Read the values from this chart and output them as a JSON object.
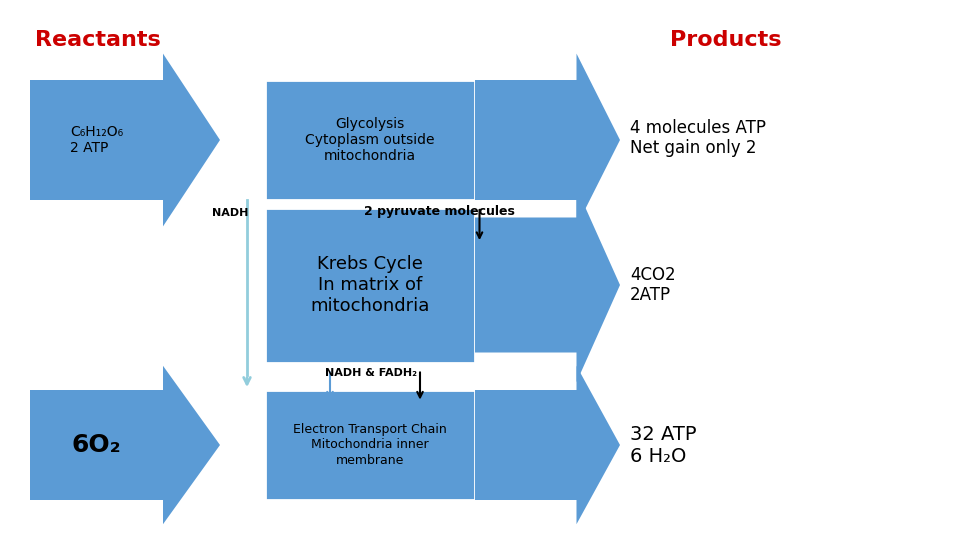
{
  "bg_color": "#ffffff",
  "arrow_color": "#5B9BD5",
  "box_color": "#5B9BD5",
  "text_color_red": "#CC0000",
  "reactants_label": "Reactants",
  "products_label": "Products",
  "product1_text": "4 molecules ATP\nNet gain only 2",
  "product2_text": "4CO2\n2ATP",
  "product3_text": "32 ATP\n6 H₂O",
  "nadh_label": "NADH",
  "nadh_fadh_label": "NADH & FADH₂",
  "pyruvate_label": "2 pyruvate molecules",
  "reactant1_label": "C₆H₁₂O₆\n2 ATP",
  "reactant3_label": "6O₂",
  "glycolysis_text": "Glycolysis\nCytoplasm outside\nmitochondria",
  "krebs_text": "Krebs Cycle\nIn matrix of\nmitochondria",
  "etc_text": "Electron Transport Chain\nMitochondria inner\nmembrane"
}
